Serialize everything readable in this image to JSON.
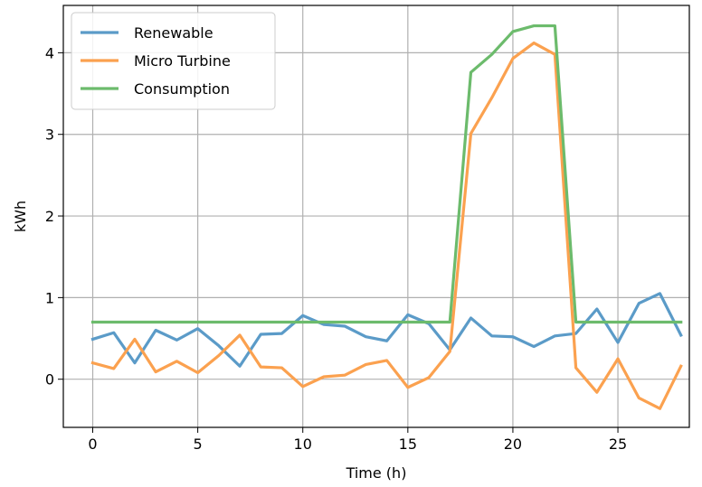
{
  "chart_data": {
    "type": "line",
    "xlabel": "Time (h)",
    "ylabel": "kWh",
    "xlim": [
      -1.4,
      28.4
    ],
    "ylim": [
      -0.59,
      4.58
    ],
    "xticks": [
      0,
      5,
      10,
      15,
      20,
      25
    ],
    "yticks": [
      0,
      1,
      2,
      3,
      4
    ],
    "grid": true,
    "legend_position": "top-left",
    "x": [
      0,
      1,
      2,
      3,
      4,
      5,
      6,
      7,
      8,
      9,
      10,
      11,
      12,
      13,
      14,
      15,
      16,
      17,
      18,
      19,
      20,
      21,
      22,
      23,
      24,
      25,
      26,
      27,
      28
    ],
    "series": [
      {
        "name": "Renewable",
        "color": "#5b9bc8",
        "values": [
          0.49,
          0.57,
          0.2,
          0.6,
          0.48,
          0.62,
          0.41,
          0.16,
          0.55,
          0.56,
          0.78,
          0.67,
          0.65,
          0.52,
          0.47,
          0.79,
          0.68,
          0.36,
          0.75,
          0.53,
          0.52,
          0.4,
          0.53,
          0.56,
          0.86,
          0.45,
          0.93,
          1.05,
          0.54
        ]
      },
      {
        "name": "Micro Turbine",
        "color": "#fba14f",
        "values": [
          0.2,
          0.13,
          0.49,
          0.09,
          0.22,
          0.08,
          0.29,
          0.54,
          0.15,
          0.14,
          -0.09,
          0.03,
          0.05,
          0.18,
          0.23,
          -0.1,
          0.02,
          0.34,
          3.01,
          3.45,
          3.93,
          4.12,
          3.98,
          0.14,
          -0.16,
          0.25,
          -0.23,
          -0.36,
          0.16
        ]
      },
      {
        "name": "Consumption",
        "color": "#6cbb6c",
        "values": [
          0.7,
          0.7,
          0.7,
          0.7,
          0.7,
          0.7,
          0.7,
          0.7,
          0.7,
          0.7,
          0.7,
          0.7,
          0.7,
          0.7,
          0.7,
          0.7,
          0.7,
          0.7,
          3.76,
          3.98,
          4.26,
          4.33,
          4.33,
          0.7,
          0.7,
          0.7,
          0.7,
          0.7,
          0.7
        ]
      }
    ]
  }
}
